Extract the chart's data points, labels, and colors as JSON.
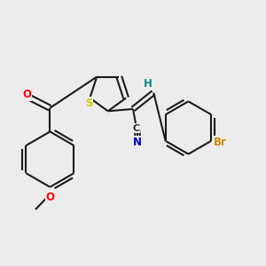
{
  "bg_color": "#ececec",
  "bond_color": "#1a1a1a",
  "bond_width": 1.5,
  "atom_colors": {
    "S": "#cccc00",
    "O": "#ff0000",
    "N": "#0000cc",
    "Br": "#cc8800",
    "H": "#008888",
    "C": "#333333"
  },
  "fig_size": [
    3.0,
    3.0
  ],
  "dpi": 100
}
